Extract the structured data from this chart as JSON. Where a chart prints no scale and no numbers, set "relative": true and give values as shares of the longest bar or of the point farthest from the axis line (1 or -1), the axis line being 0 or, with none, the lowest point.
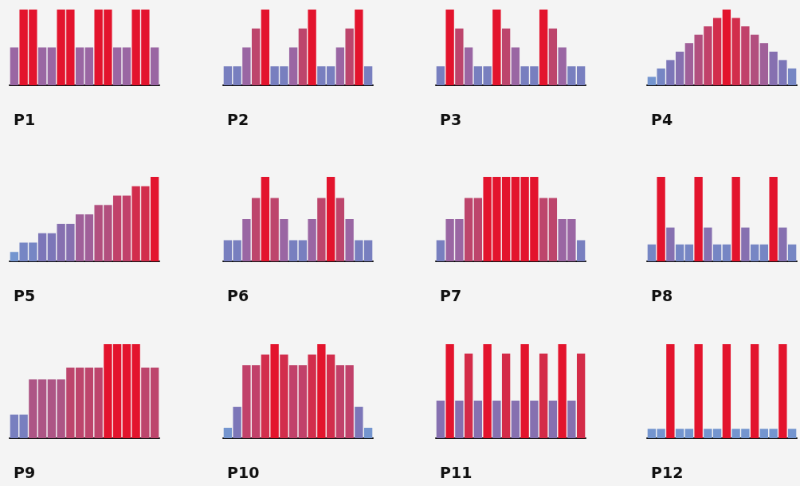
{
  "chart_data": [
    {
      "type": "bar",
      "title": "P1",
      "relative": true,
      "categories": [
        null,
        null,
        null,
        null,
        null,
        null,
        null,
        null,
        null,
        null,
        null,
        null,
        null,
        null,
        null,
        null
      ],
      "values": [
        0.5,
        1,
        1,
        0.5,
        0.5,
        1,
        1,
        0.5,
        0.5,
        1,
        1,
        0.5,
        0.5,
        1,
        1,
        0.5
      ],
      "colors": [
        "#9a66a3",
        "#e3142d",
        "#e3142d",
        "#9a66a3",
        "#9a66a3",
        "#e3142d",
        "#e3142d",
        "#9a66a3",
        "#9a66a3",
        "#e3142d",
        "#e3142d",
        "#9a66a3",
        "#9a66a3",
        "#e3142d",
        "#e3142d",
        "#9a66a3"
      ]
    },
    {
      "type": "bar",
      "title": "P2",
      "relative": true,
      "categories": [
        null,
        null,
        null,
        null,
        null,
        null,
        null,
        null,
        null,
        null,
        null,
        null,
        null,
        null,
        null,
        null
      ],
      "values": [
        0.25,
        0.25,
        0.5,
        0.75,
        1,
        0.25,
        0.25,
        0.5,
        0.75,
        1,
        0.25,
        0.25,
        0.5,
        0.75,
        1,
        0.25
      ],
      "colors": [
        "#787fbf",
        "#787fbf",
        "#9a66a3",
        "#bd456c",
        "#e3142d",
        "#787fbf",
        "#787fbf",
        "#9a66a3",
        "#bd456c",
        "#e3142d",
        "#787fbf",
        "#787fbf",
        "#9a66a3",
        "#bd456c",
        "#e3142d",
        "#787fbf"
      ]
    },
    {
      "type": "bar",
      "title": "P3",
      "relative": true,
      "categories": [
        null,
        null,
        null,
        null,
        null,
        null,
        null,
        null,
        null,
        null,
        null,
        null,
        null,
        null,
        null,
        null
      ],
      "values": [
        0.25,
        1,
        0.75,
        0.5,
        0.25,
        0.25,
        1,
        0.75,
        0.5,
        0.25,
        0.25,
        1,
        0.75,
        0.5,
        0.25,
        0.25
      ],
      "colors": [
        "#787fbf",
        "#e3142d",
        "#bd456c",
        "#9a66a3",
        "#787fbf",
        "#787fbf",
        "#e3142d",
        "#bd456c",
        "#9a66a3",
        "#787fbf",
        "#787fbf",
        "#e3142d",
        "#bd456c",
        "#9a66a3",
        "#787fbf",
        "#787fbf"
      ]
    },
    {
      "type": "bar",
      "title": "P4",
      "relative": true,
      "categories": [
        null,
        null,
        null,
        null,
        null,
        null,
        null,
        null,
        null,
        null,
        null,
        null,
        null,
        null,
        null,
        null
      ],
      "values": [
        0.111,
        0.222,
        0.333,
        0.444,
        0.556,
        0.667,
        0.778,
        0.889,
        1,
        0.889,
        0.778,
        0.667,
        0.556,
        0.444,
        0.333,
        0.222
      ],
      "colors": [
        "#7495cf",
        "#7686c4",
        "#7c76b8",
        "#8670b0",
        "#a06099",
        "#b24f7e",
        "#c1416a",
        "#d22d4c",
        "#e3142d",
        "#d22d4c",
        "#c1416a",
        "#b24f7e",
        "#a06099",
        "#8670b0",
        "#7c76b8",
        "#7686c4"
      ]
    },
    {
      "type": "bar",
      "title": "P5",
      "relative": true,
      "categories": [
        null,
        null,
        null,
        null,
        null,
        null,
        null,
        null,
        null,
        null,
        null,
        null,
        null,
        null,
        null,
        null
      ],
      "values": [
        0.111,
        0.222,
        0.222,
        0.333,
        0.333,
        0.444,
        0.444,
        0.556,
        0.556,
        0.667,
        0.667,
        0.778,
        0.778,
        0.889,
        0.889,
        1
      ],
      "colors": [
        "#7495cf",
        "#7686c4",
        "#7686c4",
        "#7c76b8",
        "#7c76b8",
        "#8670b0",
        "#8670b0",
        "#a06099",
        "#a06099",
        "#b24f7e",
        "#b24f7e",
        "#c1416a",
        "#c1416a",
        "#d22d4c",
        "#d22d4c",
        "#e3142d"
      ]
    },
    {
      "type": "bar",
      "title": "P6",
      "relative": true,
      "categories": [
        null,
        null,
        null,
        null,
        null,
        null,
        null,
        null,
        null,
        null,
        null,
        null,
        null,
        null,
        null,
        null
      ],
      "values": [
        0.25,
        0.25,
        0.5,
        0.75,
        1,
        0.75,
        0.5,
        0.25,
        0.25,
        0.5,
        0.75,
        1,
        0.75,
        0.5,
        0.25,
        0.25
      ],
      "colors": [
        "#787fbf",
        "#787fbf",
        "#9a66a3",
        "#bd456c",
        "#e3142d",
        "#bd456c",
        "#9a66a3",
        "#787fbf",
        "#787fbf",
        "#9a66a3",
        "#bd456c",
        "#e3142d",
        "#bd456c",
        "#9a66a3",
        "#787fbf",
        "#787fbf"
      ]
    },
    {
      "type": "bar",
      "title": "P7",
      "relative": true,
      "categories": [
        null,
        null,
        null,
        null,
        null,
        null,
        null,
        null,
        null,
        null,
        null,
        null,
        null,
        null,
        null,
        null
      ],
      "values": [
        0.25,
        0.5,
        0.5,
        0.75,
        0.75,
        1,
        1,
        1,
        1,
        1,
        1,
        0.75,
        0.75,
        0.5,
        0.5,
        0.25
      ],
      "colors": [
        "#787fbf",
        "#9a66a3",
        "#9a66a3",
        "#bd456c",
        "#bd456c",
        "#e3142d",
        "#e3142d",
        "#e3142d",
        "#e3142d",
        "#e3142d",
        "#e3142d",
        "#bd456c",
        "#bd456c",
        "#9a66a3",
        "#9a66a3",
        "#787fbf"
      ]
    },
    {
      "type": "bar",
      "title": "P8",
      "relative": true,
      "categories": [
        null,
        null,
        null,
        null,
        null,
        null,
        null,
        null,
        null,
        null,
        null,
        null,
        null,
        null,
        null,
        null
      ],
      "values": [
        0.2,
        1,
        0.4,
        0.2,
        0.2,
        1,
        0.4,
        0.2,
        0.2,
        1,
        0.4,
        0.2,
        0.2,
        1,
        0.4,
        0.2
      ],
      "colors": [
        "#7686c4",
        "#e3142d",
        "#8670b0",
        "#7686c4",
        "#7686c4",
        "#e3142d",
        "#8670b0",
        "#7686c4",
        "#7686c4",
        "#e3142d",
        "#8670b0",
        "#7686c4",
        "#7686c4",
        "#e3142d",
        "#8670b0",
        "#7686c4"
      ]
    },
    {
      "type": "bar",
      "title": "P9",
      "relative": true,
      "categories": [
        null,
        null,
        null,
        null,
        null,
        null,
        null,
        null,
        null,
        null,
        null,
        null,
        null,
        null,
        null,
        null
      ],
      "values": [
        0.25,
        0.25,
        0.625,
        0.625,
        0.625,
        0.625,
        0.75,
        0.75,
        0.75,
        0.75,
        1,
        1,
        1,
        1,
        0.75,
        0.75
      ],
      "colors": [
        "#787fbf",
        "#787fbf",
        "#ad5585",
        "#ad5585",
        "#ad5585",
        "#ad5585",
        "#bd456c",
        "#bd456c",
        "#bd456c",
        "#bd456c",
        "#e3142d",
        "#e3142d",
        "#e3142d",
        "#e3142d",
        "#bd456c",
        "#bd456c"
      ]
    },
    {
      "type": "bar",
      "title": "P10",
      "relative": true,
      "categories": [
        null,
        null,
        null,
        null,
        null,
        null,
        null,
        null,
        null,
        null,
        null,
        null,
        null,
        null,
        null,
        null
      ],
      "values": [
        0.111,
        0.333,
        0.778,
        0.778,
        0.889,
        1,
        0.889,
        0.778,
        0.778,
        0.889,
        1,
        0.889,
        0.778,
        0.778,
        0.333,
        0.111
      ],
      "colors": [
        "#7495cf",
        "#7c76b8",
        "#c1416a",
        "#c1416a",
        "#d22d4c",
        "#e3142d",
        "#d22d4c",
        "#c1416a",
        "#c1416a",
        "#d22d4c",
        "#e3142d",
        "#d22d4c",
        "#c1416a",
        "#c1416a",
        "#7c76b8",
        "#7495cf"
      ]
    },
    {
      "type": "bar",
      "title": "P11",
      "relative": true,
      "categories": [
        null,
        null,
        null,
        null,
        null,
        null,
        null,
        null,
        null,
        null,
        null,
        null,
        null,
        null,
        null,
        null
      ],
      "values": [
        0.4,
        1,
        0.4,
        0.9,
        0.4,
        1,
        0.4,
        0.9,
        0.4,
        1,
        0.4,
        0.9,
        0.4,
        1,
        0.4,
        0.9
      ],
      "colors": [
        "#8670b0",
        "#e3142d",
        "#8670b0",
        "#d42b48",
        "#8670b0",
        "#e3142d",
        "#8670b0",
        "#d42b48",
        "#8670b0",
        "#e3142d",
        "#8670b0",
        "#d42b48",
        "#8670b0",
        "#e3142d",
        "#8670b0",
        "#d42b48"
      ]
    },
    {
      "type": "bar",
      "title": "P12",
      "relative": true,
      "categories": [
        null,
        null,
        null,
        null,
        null,
        null,
        null,
        null,
        null,
        null,
        null,
        null,
        null,
        null,
        null,
        null
      ],
      "values": [
        0.1,
        0.1,
        1,
        0.1,
        0.1,
        1,
        0.1,
        0.1,
        1,
        0.1,
        0.1,
        1,
        0.1,
        0.1,
        1,
        0.1
      ],
      "colors": [
        "#7495cf",
        "#7495cf",
        "#e3142d",
        "#7495cf",
        "#7495cf",
        "#e3142d",
        "#7495cf",
        "#7495cf",
        "#e3142d",
        "#7495cf",
        "#7495cf",
        "#e3142d",
        "#7495cf",
        "#7495cf",
        "#e3142d",
        "#7495cf"
      ]
    }
  ]
}
